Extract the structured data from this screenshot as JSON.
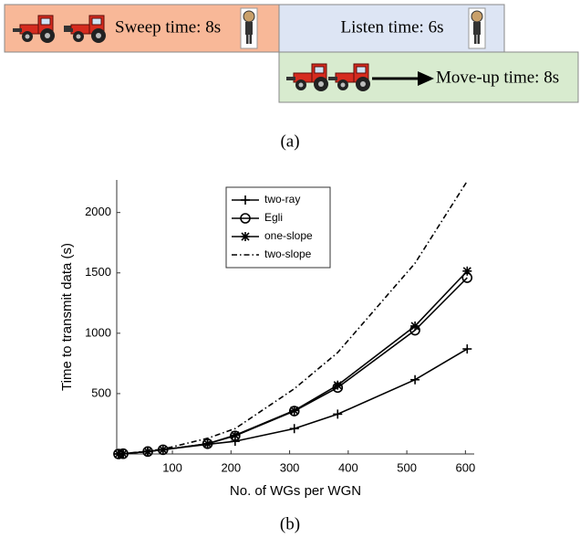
{
  "diagram": {
    "sweep": "Sweep time: 8s",
    "listen": "Listen time: 6s",
    "moveup": "Move-up time: 8s",
    "caption": "(a)"
  },
  "chart_data": {
    "type": "line",
    "caption": "(b)",
    "x_label": "No. of WGs per WGN",
    "y_label": "Time to transmit data (s)",
    "x": [
      8,
      16,
      58,
      84,
      160,
      207,
      308,
      382,
      514,
      603
    ],
    "series": [
      {
        "name": "two-ray",
        "color": "#000000",
        "marker": "+",
        "dash": "solid",
        "values": [
          0,
          2,
          20,
          35,
          80,
          105,
          210,
          330,
          615,
          870
        ]
      },
      {
        "name": "Egli",
        "color": "#000000",
        "marker": "o",
        "dash": "solid",
        "values": [
          0,
          2,
          20,
          35,
          85,
          150,
          355,
          550,
          1025,
          1460
        ]
      },
      {
        "name": "one-slope",
        "color": "#000000",
        "marker": "*",
        "dash": "solid",
        "values": [
          0,
          2,
          20,
          35,
          85,
          155,
          360,
          570,
          1060,
          1515
        ]
      },
      {
        "name": "two-slope",
        "color": "#000000",
        "marker": "none",
        "dash": "dashdot",
        "values": [
          0,
          2,
          25,
          40,
          130,
          210,
          540,
          840,
          1580,
          2260
        ]
      }
    ],
    "xlim": [
      5,
      615
    ],
    "ylim": [
      0,
      2270
    ],
    "xticks": [
      100,
      200,
      300,
      400,
      500,
      600
    ],
    "yticks": [
      500,
      1000,
      1500,
      2000
    ],
    "legend": "upper-left"
  }
}
